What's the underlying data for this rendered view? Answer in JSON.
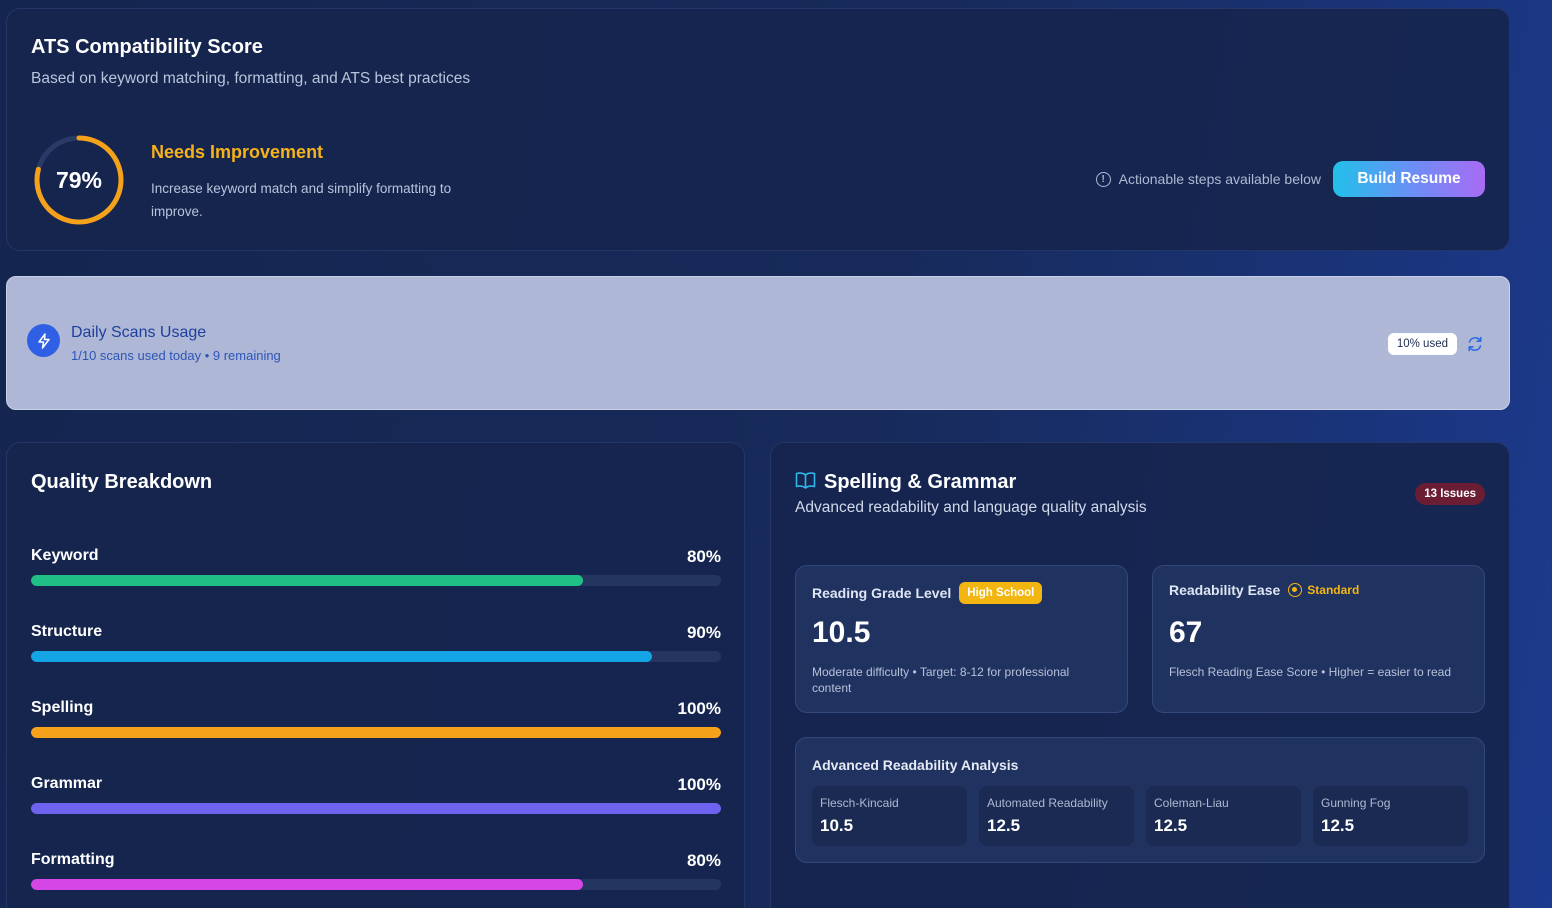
{
  "ats": {
    "title": "ATS Compatibility Score",
    "subtitle": "Based on keyword matching, formatting, and ATS best practices",
    "score_label": "79%",
    "score_value": 79,
    "status": "Needs Improvement",
    "description": "Increase keyword match and simplify formatting to improve.",
    "hint": "Actionable steps available below",
    "build_button": "Build Resume",
    "gauge_color": "#f5a11a"
  },
  "scans": {
    "title": "Daily Scans Usage",
    "subtitle": "1/10 scans used today • 9 remaining",
    "badge": "10% used"
  },
  "quality": {
    "title": "Quality Breakdown",
    "metrics": [
      {
        "name": "Keyword",
        "label": "80%",
        "value": 80,
        "color": "#1fbf86"
      },
      {
        "name": "Structure",
        "label": "90%",
        "value": 90,
        "color": "#14a5e6"
      },
      {
        "name": "Spelling",
        "label": "100%",
        "value": 100,
        "color": "#f5a11a"
      },
      {
        "name": "Grammar",
        "label": "100%",
        "value": 100,
        "color": "#6d63ee"
      },
      {
        "name": "Formatting",
        "label": "80%",
        "value": 80,
        "color": "#d645e6"
      }
    ]
  },
  "spelling": {
    "title": "Spelling & Grammar",
    "subtitle": "Advanced readability and language quality analysis",
    "issues": "13 Issues",
    "grade": {
      "label": "Reading Grade Level",
      "badge": "High School",
      "value": "10.5",
      "desc": "Moderate difficulty • Target: 8-12 for professional content"
    },
    "ease": {
      "label": "Readability Ease",
      "badge": "Standard",
      "value": "67",
      "desc": "Flesch Reading Ease Score • Higher = easier to read"
    },
    "advanced": {
      "title": "Advanced Readability Analysis",
      "items": [
        {
          "name": "Flesch-Kincaid",
          "value": "10.5"
        },
        {
          "name": "Automated Readability",
          "value": "12.5"
        },
        {
          "name": "Coleman-Liau",
          "value": "12.5"
        },
        {
          "name": "Gunning Fog",
          "value": "12.5"
        }
      ]
    }
  }
}
